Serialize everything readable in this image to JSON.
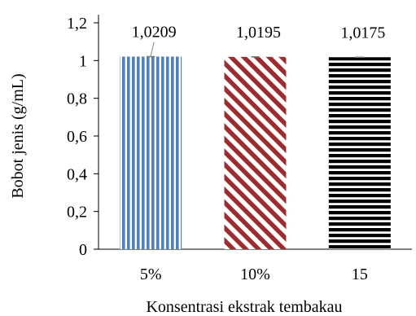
{
  "chart_data": {
    "type": "bar",
    "categories": [
      "5%",
      "10%",
      "15"
    ],
    "values": [
      1.0209,
      1.0195,
      1.0175
    ],
    "data_labels": [
      "1,0209",
      "1,0195",
      "1,0175"
    ],
    "xlabel": "Konsentrasi ekstrak tembakau",
    "ylabel": "Bobot jenis (g/mL)",
    "ylim": [
      0,
      1.2
    ],
    "yticks": [
      0,
      0.2,
      0.4,
      0.6,
      0.8,
      1,
      1.2
    ],
    "ytick_labels": [
      "0",
      "0,2",
      "0,4",
      "0,6",
      "0,8",
      "1",
      "1,2"
    ],
    "error_bars": true,
    "grid": false,
    "legend": "none",
    "bar_patterns": [
      "vertical-stripes",
      "diagonal-stripes",
      "horizontal-stripes"
    ],
    "bar_colors": [
      "#4f81bd",
      "#9b2d30",
      "#000000"
    ]
  }
}
